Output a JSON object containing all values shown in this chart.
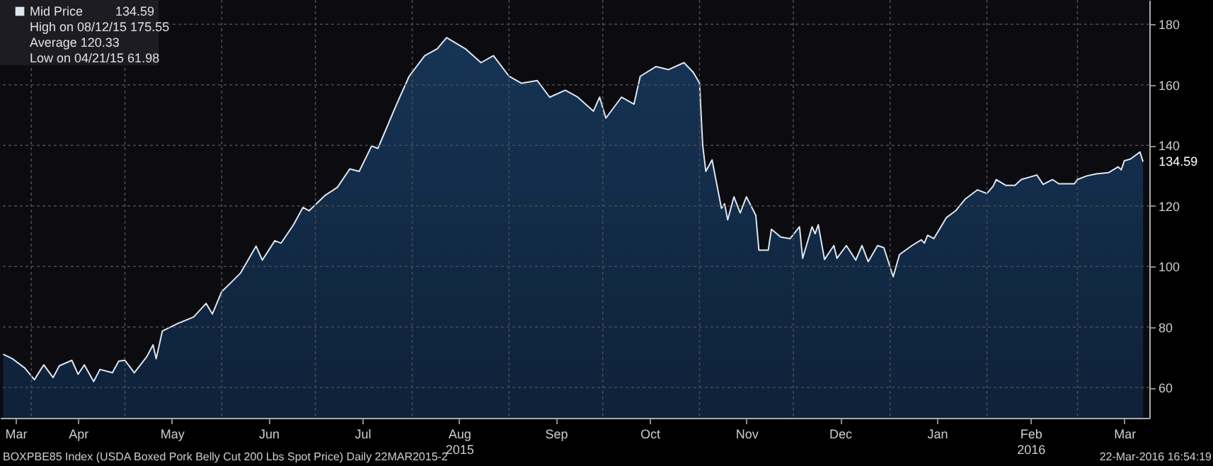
{
  "chart_data": {
    "type": "area",
    "title": "BOXPBE85 Index (USDA Boxed Pork Belly Cut 200 Lbs Spot Price)  Daily 22MAR2015-2",
    "xlim": [
      "2015-03-22",
      "2016-03-24"
    ],
    "ylim": [
      50,
      188
    ],
    "yticks": [
      60,
      80,
      100,
      120,
      140,
      160,
      180
    ],
    "xticks": [
      {
        "value": "2015-03-27",
        "label": "Mar"
      },
      {
        "value": "2015-04-01",
        "label": null
      },
      {
        "value": "2015-04-16",
        "label": "Apr"
      },
      {
        "value": "2015-05-01",
        "label": null
      },
      {
        "value": "2015-05-16",
        "label": "May"
      },
      {
        "value": "2015-06-01",
        "label": null
      },
      {
        "value": "2015-06-16",
        "label": "Jun"
      },
      {
        "value": "2015-07-01",
        "label": null
      },
      {
        "value": "2015-07-16",
        "label": "Jul"
      },
      {
        "value": "2015-08-01",
        "label": null
      },
      {
        "value": "2015-08-16",
        "label": "Aug\n2015"
      },
      {
        "value": "2015-09-01",
        "label": null
      },
      {
        "value": "2015-09-16",
        "label": "Sep"
      },
      {
        "value": "2015-10-01",
        "label": null
      },
      {
        "value": "2015-10-16",
        "label": "Oct"
      },
      {
        "value": "2015-11-01",
        "label": null
      },
      {
        "value": "2015-11-16",
        "label": "Nov"
      },
      {
        "value": "2015-12-01",
        "label": null
      },
      {
        "value": "2015-12-16",
        "label": "Dec"
      },
      {
        "value": "2016-01-01",
        "label": null
      },
      {
        "value": "2016-01-16",
        "label": "Jan"
      },
      {
        "value": "2016-02-01",
        "label": null
      },
      {
        "value": "2016-02-15",
        "label": "Feb\n2016"
      },
      {
        "value": "2016-03-01",
        "label": null
      },
      {
        "value": "2016-03-16",
        "label": "Mar"
      }
    ],
    "grid": true,
    "legend": "top left",
    "annotations": [
      {
        "text": "134.59",
        "x": "2016-03-22",
        "y": 134.59
      },
      "134.59",
      "High on 08/12/15 175.55",
      "Average 120.33",
      "Low on 04/21/15 61.98",
      "22-Mar-2016 16:54:19"
    ],
    "series": [
      {
        "name": "Mid Price",
        "color": "#dfe5ee",
        "x": [
          "2015-03-23",
          "2015-03-26",
          "2015-03-30",
          "2015-04-02",
          "2015-04-05",
          "2015-04-08",
          "2015-04-10",
          "2015-04-14",
          "2015-04-16",
          "2015-04-18",
          "2015-04-21",
          "2015-04-23",
          "2015-04-27",
          "2015-04-29",
          "2015-05-01",
          "2015-05-04",
          "2015-05-08",
          "2015-05-10",
          "2015-05-11",
          "2015-05-13",
          "2015-05-18",
          "2015-05-23",
          "2015-05-27",
          "2015-05-29",
          "2015-06-01",
          "2015-06-04",
          "2015-06-07",
          "2015-06-12",
          "2015-06-14",
          "2015-06-18",
          "2015-06-20",
          "2015-06-24",
          "2015-06-27",
          "2015-06-29",
          "2015-07-04",
          "2015-07-08",
          "2015-07-12",
          "2015-07-15",
          "2015-07-19",
          "2015-07-21",
          "2015-07-27",
          "2015-07-31",
          "2015-08-05",
          "2015-08-09",
          "2015-08-12",
          "2015-08-18",
          "2015-08-23",
          "2015-08-27",
          "2015-09-01",
          "2015-09-05",
          "2015-09-10",
          "2015-09-14",
          "2015-09-19",
          "2015-09-23",
          "2015-09-28",
          "2015-09-30",
          "2015-10-02",
          "2015-10-07",
          "2015-10-11",
          "2015-10-13",
          "2015-10-18",
          "2015-10-22",
          "2015-10-27",
          "2015-10-30",
          "2015-11-01",
          "2015-11-02",
          "2015-11-03",
          "2015-11-05",
          "2015-11-08",
          "2015-11-09",
          "2015-11-10",
          "2015-11-12",
          "2015-11-14",
          "2015-11-16",
          "2015-11-19",
          "2015-11-20",
          "2015-11-23",
          "2015-11-24",
          "2015-11-27",
          "2015-11-30",
          "2015-12-03",
          "2015-12-04",
          "2015-12-07",
          "2015-12-08",
          "2015-12-09",
          "2015-12-11",
          "2015-12-14",
          "2015-12-15",
          "2015-12-18",
          "2015-12-21",
          "2015-12-23",
          "2015-12-25",
          "2015-12-28",
          "2015-12-30",
          "2016-01-02",
          "2016-01-04",
          "2016-01-08",
          "2016-01-11",
          "2016-01-12",
          "2016-01-13",
          "2016-01-15",
          "2016-01-19",
          "2016-01-22",
          "2016-01-25",
          "2016-01-29",
          "2016-02-01",
          "2016-02-03",
          "2016-02-04",
          "2016-02-07",
          "2016-02-10",
          "2016-02-12",
          "2016-02-17",
          "2016-02-19",
          "2016-02-22",
          "2016-02-24",
          "2016-02-29",
          "2016-03-01",
          "2016-03-04",
          "2016-03-07",
          "2016-03-11",
          "2016-03-14",
          "2016-03-15",
          "2016-03-16",
          "2016-03-18",
          "2016-03-21",
          "2016-03-22"
        ],
        "values": [
          71.0,
          69.5,
          66.4,
          62.6,
          67.5,
          63.3,
          67.2,
          69.0,
          64.4,
          67.5,
          61.98,
          66.0,
          64.9,
          68.7,
          69.0,
          64.9,
          70.2,
          74.1,
          69.5,
          78.7,
          81.2,
          83.3,
          87.8,
          84.3,
          91.7,
          94.7,
          97.8,
          106.7,
          102.1,
          108.5,
          107.7,
          113.8,
          119.5,
          118.4,
          123.4,
          126.1,
          132.2,
          131.4,
          139.8,
          139.0,
          153.6,
          162.8,
          169.6,
          171.9,
          175.55,
          171.9,
          167.3,
          169.6,
          162.8,
          160.5,
          161.4,
          155.9,
          158.2,
          155.9,
          151.3,
          155.9,
          149.0,
          155.9,
          153.6,
          162.8,
          166.0,
          165.0,
          167.3,
          164.1,
          160.5,
          140.0,
          131.4,
          135.2,
          119.2,
          120.7,
          115.4,
          123.0,
          117.7,
          123.0,
          116.9,
          105.4,
          105.4,
          112.3,
          109.7,
          109.2,
          113.1,
          102.7,
          113.1,
          110.8,
          113.8,
          102.3,
          106.9,
          102.7,
          106.9,
          102.1,
          106.9,
          101.6,
          106.9,
          106.2,
          96.6,
          103.9,
          106.9,
          108.8,
          107.7,
          110.3,
          109.2,
          116.1,
          118.4,
          122.2,
          125.3,
          124.1,
          126.5,
          128.7,
          126.8,
          126.8,
          128.7,
          130.2,
          127.1,
          128.7,
          127.3,
          127.3,
          128.7,
          129.9,
          130.6,
          131.0,
          132.9,
          131.9,
          134.9,
          135.5,
          137.8,
          134.59
        ]
      }
    ]
  }
}
